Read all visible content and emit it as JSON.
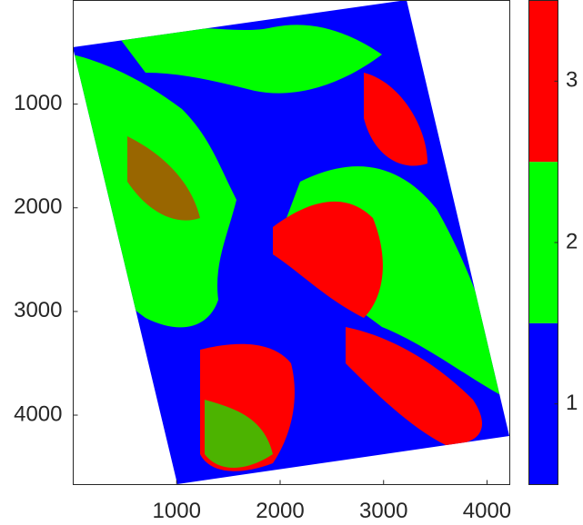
{
  "chart_data": {
    "type": "image",
    "xlim": [
      0,
      4220
    ],
    "ylim": [
      0,
      4670
    ],
    "y_reversed": true,
    "xticks": [
      1000,
      2000,
      3000,
      4000
    ],
    "yticks": [
      1000,
      2000,
      3000,
      4000
    ],
    "colorbar": {
      "colors": [
        "#0000ff",
        "#00ff00",
        "#ff0000"
      ],
      "clim": [
        0.5,
        3.5
      ],
      "ticks": [
        1,
        2,
        3
      ]
    }
  }
}
